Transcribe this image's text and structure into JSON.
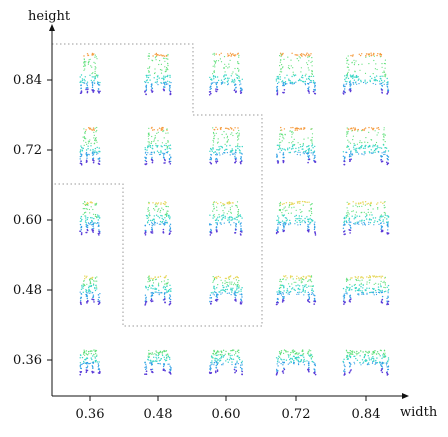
{
  "chart_data": {
    "type": "scatter",
    "xlabel": "width",
    "ylabel": "height",
    "x_ticks": [
      "0.36",
      "0.48",
      "0.60",
      "0.72",
      "0.84"
    ],
    "y_ticks": [
      "0.36",
      "0.48",
      "0.60",
      "0.72",
      "0.84"
    ],
    "x_values": [
      0.36,
      0.48,
      0.6,
      0.72,
      0.84
    ],
    "y_values": [
      0.36,
      0.48,
      0.6,
      0.72,
      0.84
    ],
    "grid": false,
    "points": [
      {
        "width": 0.36,
        "height": 0.84
      },
      {
        "width": 0.48,
        "height": 0.84
      },
      {
        "width": 0.6,
        "height": 0.84
      },
      {
        "width": 0.72,
        "height": 0.84
      },
      {
        "width": 0.84,
        "height": 0.84
      },
      {
        "width": 0.36,
        "height": 0.72
      },
      {
        "width": 0.48,
        "height": 0.72
      },
      {
        "width": 0.6,
        "height": 0.72
      },
      {
        "width": 0.72,
        "height": 0.72
      },
      {
        "width": 0.84,
        "height": 0.72
      },
      {
        "width": 0.36,
        "height": 0.6
      },
      {
        "width": 0.48,
        "height": 0.6
      },
      {
        "width": 0.6,
        "height": 0.6
      },
      {
        "width": 0.72,
        "height": 0.6
      },
      {
        "width": 0.84,
        "height": 0.6
      },
      {
        "width": 0.36,
        "height": 0.48
      },
      {
        "width": 0.48,
        "height": 0.48
      },
      {
        "width": 0.6,
        "height": 0.48
      },
      {
        "width": 0.72,
        "height": 0.48
      },
      {
        "width": 0.84,
        "height": 0.48
      },
      {
        "width": 0.36,
        "height": 0.36
      },
      {
        "width": 0.48,
        "height": 0.36
      },
      {
        "width": 0.6,
        "height": 0.36
      },
      {
        "width": 0.72,
        "height": 0.36
      },
      {
        "width": 0.84,
        "height": 0.36
      }
    ],
    "colors": {
      "top": "#f59a3c",
      "upper": "#e6d75a",
      "mid": "#5fe07a",
      "body": "#38d6c6",
      "legs": "#2fa0e6",
      "feet": "#5a3ad8"
    }
  }
}
